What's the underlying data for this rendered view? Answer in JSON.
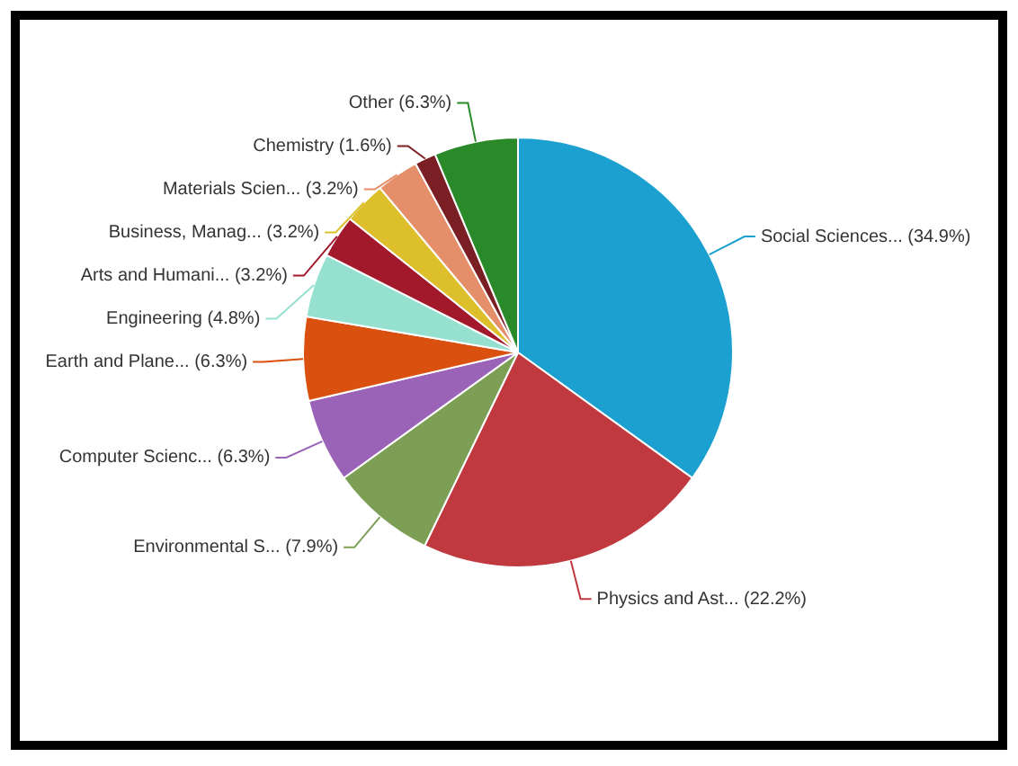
{
  "chart_data": {
    "type": "pie",
    "categories": [
      "Social Sciences...",
      "Physics and Ast...",
      "Environmental S...",
      "Computer Scienc...",
      "Earth and Plane...",
      "Engineering",
      "Arts and Humani...",
      "Business, Manag...",
      "Materials Scien...",
      "Chemistry",
      "Other"
    ],
    "values": [
      34.9,
      22.2,
      7.9,
      6.3,
      6.3,
      4.8,
      3.2,
      3.2,
      3.2,
      1.6,
      6.3
    ],
    "value_labels": [
      "(34.9%)",
      "(22.2%)",
      "(7.9%)",
      "(6.3%)",
      "(6.3%)",
      "(4.8%)",
      "(3.2%)",
      "(3.2%)",
      "(3.2%)",
      "(1.6%)",
      "(6.3%)"
    ],
    "colors": [
      "#1ba0cf",
      "#c0393f",
      "#7d9e55",
      "#9a63b8",
      "#d9500f",
      "#96e0d0",
      "#a3192c",
      "#dcbf2a",
      "#e58e6a",
      "#7a1f23",
      "#2a8a2a"
    ],
    "legend": false
  }
}
